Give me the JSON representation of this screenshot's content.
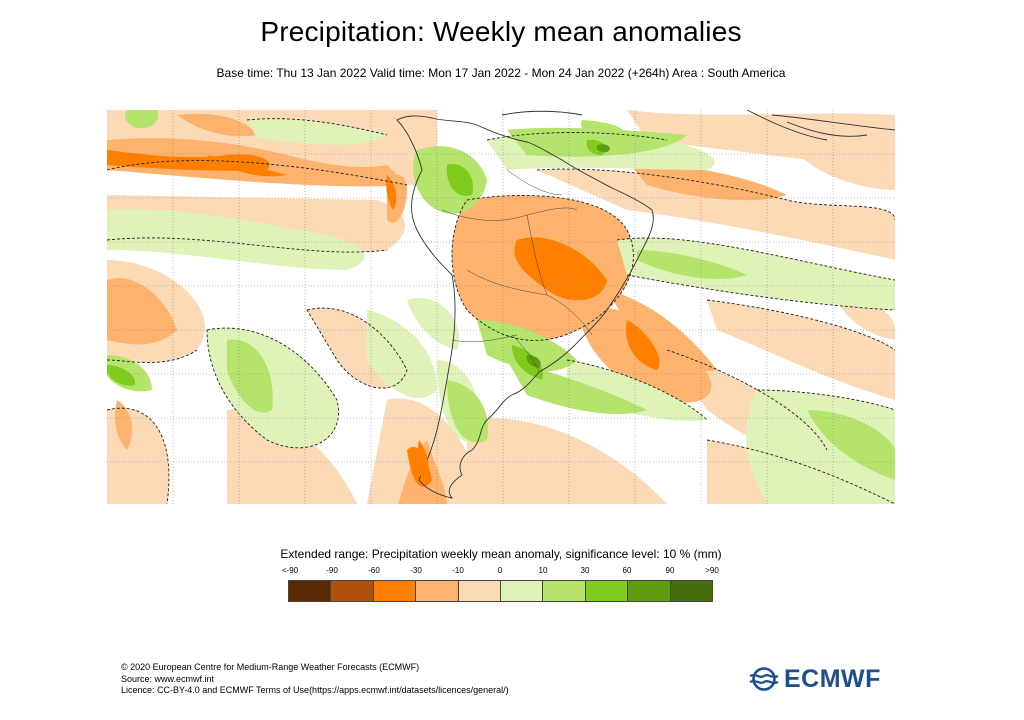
{
  "title": "Precipitation: Weekly mean anomalies",
  "subtitle": "Base time: Thu 13 Jan 2022 Valid time: Mon 17 Jan 2022 - Mon 24 Jan 2022 (+264h) Area : South America",
  "legend": {
    "title": "Extended range: Precipitation weekly mean anomaly, significance level: 10 % (mm)",
    "ticks": [
      "<-90",
      "-90",
      "-60",
      "-30",
      "-10",
      "0",
      "10",
      "30",
      "60",
      "90",
      ">90"
    ],
    "colors": [
      "#5a2a07",
      "#b0500d",
      "#ff8000",
      "#fdb36e",
      "#fddab6",
      "#dff3b9",
      "#b4e46c",
      "#80cc1e",
      "#5f9c12",
      "#446e0c"
    ]
  },
  "footer": {
    "line1": "© 2020 European Centre for Medium-Range Weather Forecasts (ECMWF)",
    "line2": "Source: www.ecmwf.int",
    "line3": "Licence: CC-BY-4.0 and ECMWF Terms of Use(https://apps.ecmwf.int/datasets/licences/general/)"
  },
  "logo": {
    "text": "ECMWF",
    "color": "#1f4e8c"
  }
}
